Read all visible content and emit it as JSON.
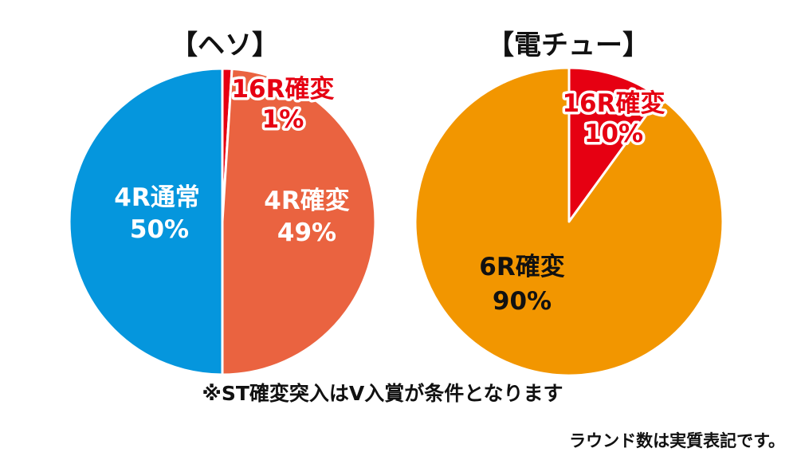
{
  "chart_data": [
    {
      "type": "pie",
      "title": "【ヘソ】",
      "slices": [
        {
          "label": "16R確変",
          "value": 1,
          "value_label": "1%",
          "color": "#e60012"
        },
        {
          "label": "4R確変",
          "value": 49,
          "value_label": "49%",
          "color": "#ea6340"
        },
        {
          "label": "4R通常",
          "value": 50,
          "value_label": "50%",
          "color": "#0596dd"
        }
      ]
    },
    {
      "type": "pie",
      "title": "【電チュー】",
      "slices": [
        {
          "label": "16R確変",
          "value": 10,
          "value_label": "10%",
          "color": "#e60012"
        },
        {
          "label": "6R確変",
          "value": 90,
          "value_label": "90%",
          "color": "#f29600"
        }
      ]
    }
  ],
  "notes": {
    "condition": "※ST確変突入はV入賞が条件となります",
    "rounds": "ラウンド数は実質表記です。"
  }
}
